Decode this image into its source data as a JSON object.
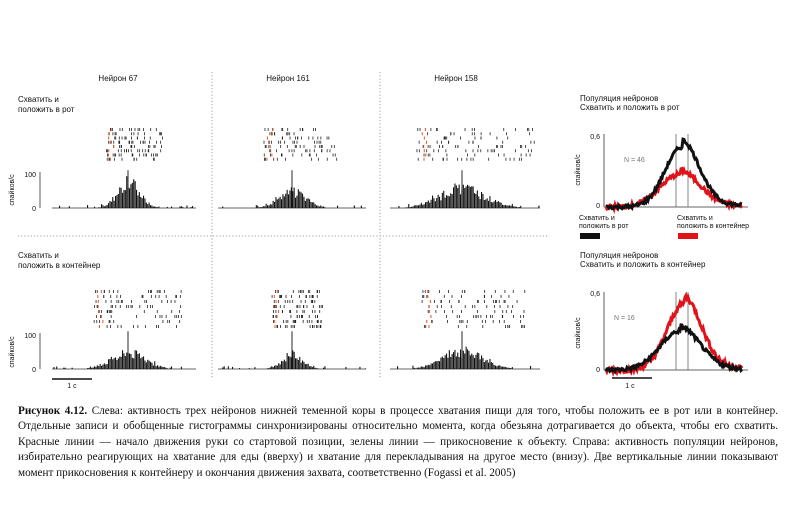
{
  "figure": {
    "neuron_titles": [
      "Нейрон 67",
      "Нейрон 161",
      "Нейрон 158"
    ],
    "rows": [
      {
        "condition_line1": "Схватить и",
        "condition_line2": "положить в рот"
      },
      {
        "condition_line1": "Схватить и",
        "condition_line2": "положить в контейнер"
      }
    ],
    "y_axis_label": "спайков/с",
    "y_tick_top": "100",
    "y_tick_bottom": "0",
    "scale_bar_label": "1 с",
    "population": {
      "top_title_line1": "Популяция нейронов",
      "top_title_line2": "Схватить и положить в рот",
      "bottom_title_line1": "Популяция нейронов",
      "bottom_title_line2": "Схватить и положить в контейнер",
      "y_tick_top": "0,6",
      "y_tick_bottom": "0",
      "n_top": "N = 46",
      "n_bottom": "N = 16",
      "legend_black_line1": "Схватить и",
      "legend_black_line2": "положить в рот",
      "legend_red_line1": "Схватить и",
      "legend_red_line2": "положить в контейнер",
      "color_black": "#111111",
      "color_red": "#e0131b",
      "scale_bar_label": "1 с"
    },
    "marker_colors": {
      "movement_onset": "#e0531b",
      "contact": "#2a9a4a",
      "rasters": "#222222"
    }
  },
  "caption": {
    "label": "Рисунок 4.12.",
    "text": " Слева: активность трех нейронов нижней теменной коры в процессе хватания пищи для того, чтобы положить ее в рот или в контейнер. Отдельные записи и обобщенные гистограммы синхронизированы относительно момента, когда обезьяна дотрагивается до объекта, чтобы его схватить. Красные линии — начало движения руки со стартовой позиции, зелены линии — прикосновение к объекту. Справа: активность популяции нейронов, избирательно реагирующих на хватание для еды (вверху) и хватание для перекладывания на другое место (внизу). Две вертикальные линии показывают момент прикосновения к контейнеру и окончания движения захвата, соответственно (Fogassi et al. 2005)"
  }
}
